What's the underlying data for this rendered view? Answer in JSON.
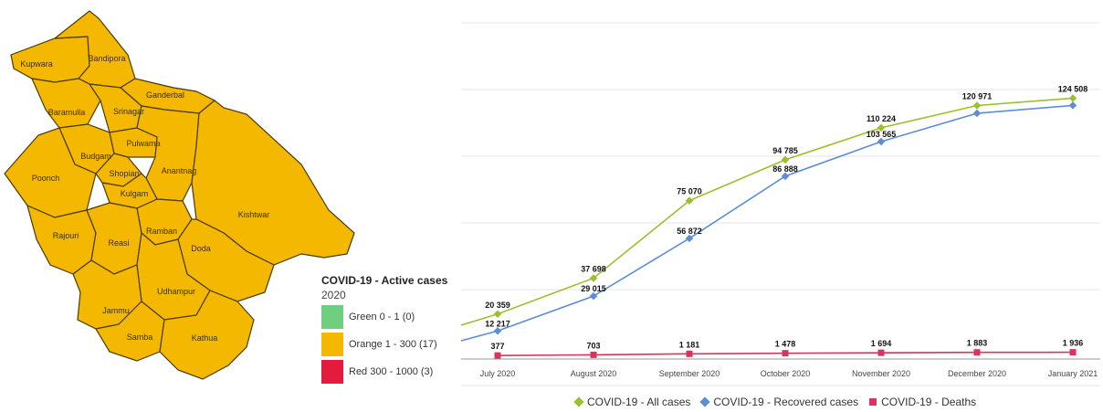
{
  "map": {
    "districts": [
      {
        "id": "kupwara",
        "label": "Kupwara"
      },
      {
        "id": "bandipora",
        "label": "Bandipora"
      },
      {
        "id": "ganderbal",
        "label": "Ganderbal"
      },
      {
        "id": "baramulla",
        "label": "Baramulla"
      },
      {
        "id": "srinagar",
        "label": "Srinagar"
      },
      {
        "id": "budgam",
        "label": "Budgam"
      },
      {
        "id": "pulwama",
        "label": "Pulwama"
      },
      {
        "id": "shopian",
        "label": "Shopian"
      },
      {
        "id": "anantnag",
        "label": "Anantnag"
      },
      {
        "id": "kulgam",
        "label": "Kulgam"
      },
      {
        "id": "poonch",
        "label": "Poonch"
      },
      {
        "id": "kishtwar",
        "label": "Kishtwar"
      },
      {
        "id": "rajouri",
        "label": "Rajouri"
      },
      {
        "id": "ramban",
        "label": "Ramban"
      },
      {
        "id": "reasi",
        "label": "Reasi"
      },
      {
        "id": "doda",
        "label": "Doda"
      },
      {
        "id": "udhampur",
        "label": "Udhampur"
      },
      {
        "id": "jammu",
        "label": "Jammu"
      },
      {
        "id": "samba",
        "label": "Samba"
      },
      {
        "id": "kathua",
        "label": "Kathua"
      }
    ]
  },
  "legend": {
    "title": "COVID-19 - Active cases",
    "year": "2020",
    "items": [
      {
        "label": "Green 0 - 1 (0)",
        "color": "#6fcf7f"
      },
      {
        "label": "Orange 1 - 300 (17)",
        "color": "#f5b800"
      },
      {
        "label": "Red 300 - 1000 (3)",
        "color": "#e31b3c"
      }
    ]
  },
  "chart_data": {
    "type": "line",
    "categories": [
      "July 2020",
      "August 2020",
      "September 2020",
      "October 2020",
      "November 2020",
      "December 2020",
      "January 2021"
    ],
    "series": [
      {
        "name": "COVID-19 - All cases",
        "color": "#9ac02b",
        "marker": "diamond",
        "values": [
          20359,
          37698,
          75070,
          94785,
          110224,
          120971,
          124508
        ],
        "labels": [
          "20 359",
          "37 698",
          "75 070",
          "94 785",
          "110 224",
          "120 971",
          "124 508"
        ],
        "start": 15000
      },
      {
        "name": "COVID-19 - Recovered cases",
        "color": "#5b8ed6",
        "marker": "diamond",
        "values": [
          12217,
          29015,
          56872,
          86888,
          103565,
          117200,
          121000
        ],
        "labels": [
          "12 217",
          "29 015",
          "56 872",
          "86 888",
          "103 565",
          "",
          ""
        ],
        "start": 7500
      },
      {
        "name": "COVID-19 - Deaths",
        "color": "#d8345f",
        "marker": "square",
        "values": [
          377,
          703,
          1181,
          1478,
          1694,
          1883,
          1936
        ],
        "labels": [
          "377",
          "703",
          "1 181",
          "1 478",
          "1 694",
          "1 883",
          "1 936"
        ]
      }
    ],
    "ylim": [
      0,
      130000
    ],
    "grid": true,
    "legend_position": "bottom"
  }
}
